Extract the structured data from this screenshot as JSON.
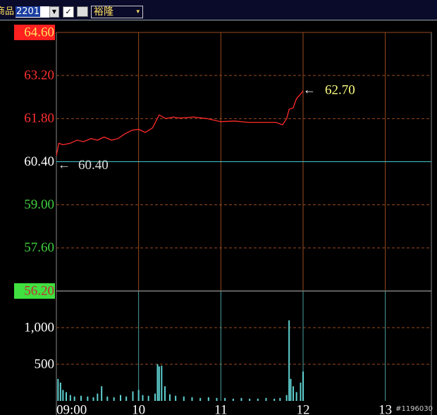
{
  "toolbar": {
    "field_label": "商品",
    "code": "2201",
    "name": "裕隆"
  },
  "chart_data": [
    {
      "type": "line",
      "color": "#ff2a2a",
      "x": [
        9.0,
        9.03,
        9.08,
        9.17,
        9.25,
        9.33,
        9.42,
        9.5,
        9.58,
        9.67,
        9.75,
        9.83,
        9.92,
        10.0,
        10.08,
        10.17,
        10.25,
        10.33,
        10.42,
        10.5,
        10.67,
        10.83,
        11.0,
        11.17,
        11.33,
        11.5,
        11.67,
        11.75,
        11.8,
        11.83,
        11.88,
        11.92,
        11.97,
        12.0
      ],
      "values": [
        60.6,
        61.0,
        60.95,
        61.0,
        61.1,
        61.05,
        61.15,
        61.1,
        61.2,
        61.1,
        61.15,
        61.3,
        61.42,
        61.45,
        61.35,
        61.5,
        61.92,
        61.8,
        61.85,
        61.82,
        61.85,
        61.8,
        61.7,
        61.72,
        61.68,
        61.68,
        61.68,
        61.6,
        61.8,
        62.1,
        62.15,
        62.45,
        62.6,
        62.7
      ],
      "ylim": [
        56.2,
        64.6
      ],
      "yticks": [
        {
          "value": 64.6,
          "label": "64.60"
        },
        {
          "value": 63.2,
          "label": "63.20"
        },
        {
          "value": 61.8,
          "label": "61.80"
        },
        {
          "value": 60.4,
          "label": "60.40"
        },
        {
          "value": 59.0,
          "label": "59.00"
        },
        {
          "value": 57.6,
          "label": "57.60"
        },
        {
          "value": 56.2,
          "label": "56.20"
        }
      ],
      "xlim": [
        9,
        13.5
      ],
      "xticks": [
        10,
        11,
        12,
        13
      ],
      "grid": true,
      "reference": {
        "value": 60.4,
        "label": "60.40",
        "color": "#44c8c8"
      },
      "annotation": {
        "x": 12.0,
        "value": 62.7,
        "label": "62.70"
      }
    },
    {
      "type": "bar",
      "color": "#5fd0d0",
      "x": [
        9.02,
        9.05,
        9.08,
        9.12,
        9.17,
        9.22,
        9.3,
        9.38,
        9.45,
        9.5,
        9.55,
        9.62,
        9.7,
        9.78,
        9.85,
        9.93,
        10.0,
        10.05,
        10.12,
        10.2,
        10.23,
        10.25,
        10.28,
        10.32,
        10.38,
        10.45,
        10.55,
        10.65,
        10.75,
        10.85,
        10.95,
        11.05,
        11.15,
        11.25,
        11.35,
        11.45,
        11.55,
        11.65,
        11.72,
        11.8,
        11.83,
        11.85,
        11.88,
        11.92,
        11.97,
        12.0
      ],
      "values": [
        300,
        250,
        150,
        120,
        80,
        60,
        70,
        60,
        50,
        100,
        200,
        60,
        50,
        80,
        60,
        130,
        150,
        80,
        70,
        100,
        500,
        470,
        480,
        200,
        90,
        70,
        60,
        50,
        40,
        50,
        40,
        40,
        30,
        40,
        30,
        30,
        40,
        30,
        40,
        80,
        1100,
        300,
        200,
        120,
        250,
        400
      ],
      "ylim": [
        0,
        1500
      ],
      "yticks": [
        500,
        {
          "value": 1000,
          "label": "1,000"
        }
      ],
      "xlim": [
        9,
        13.5
      ],
      "xticks": [
        {
          "value": 9,
          "label": "09:00"
        },
        10,
        11,
        12,
        13
      ],
      "grid": true
    }
  ],
  "footer_id": "#1196030"
}
